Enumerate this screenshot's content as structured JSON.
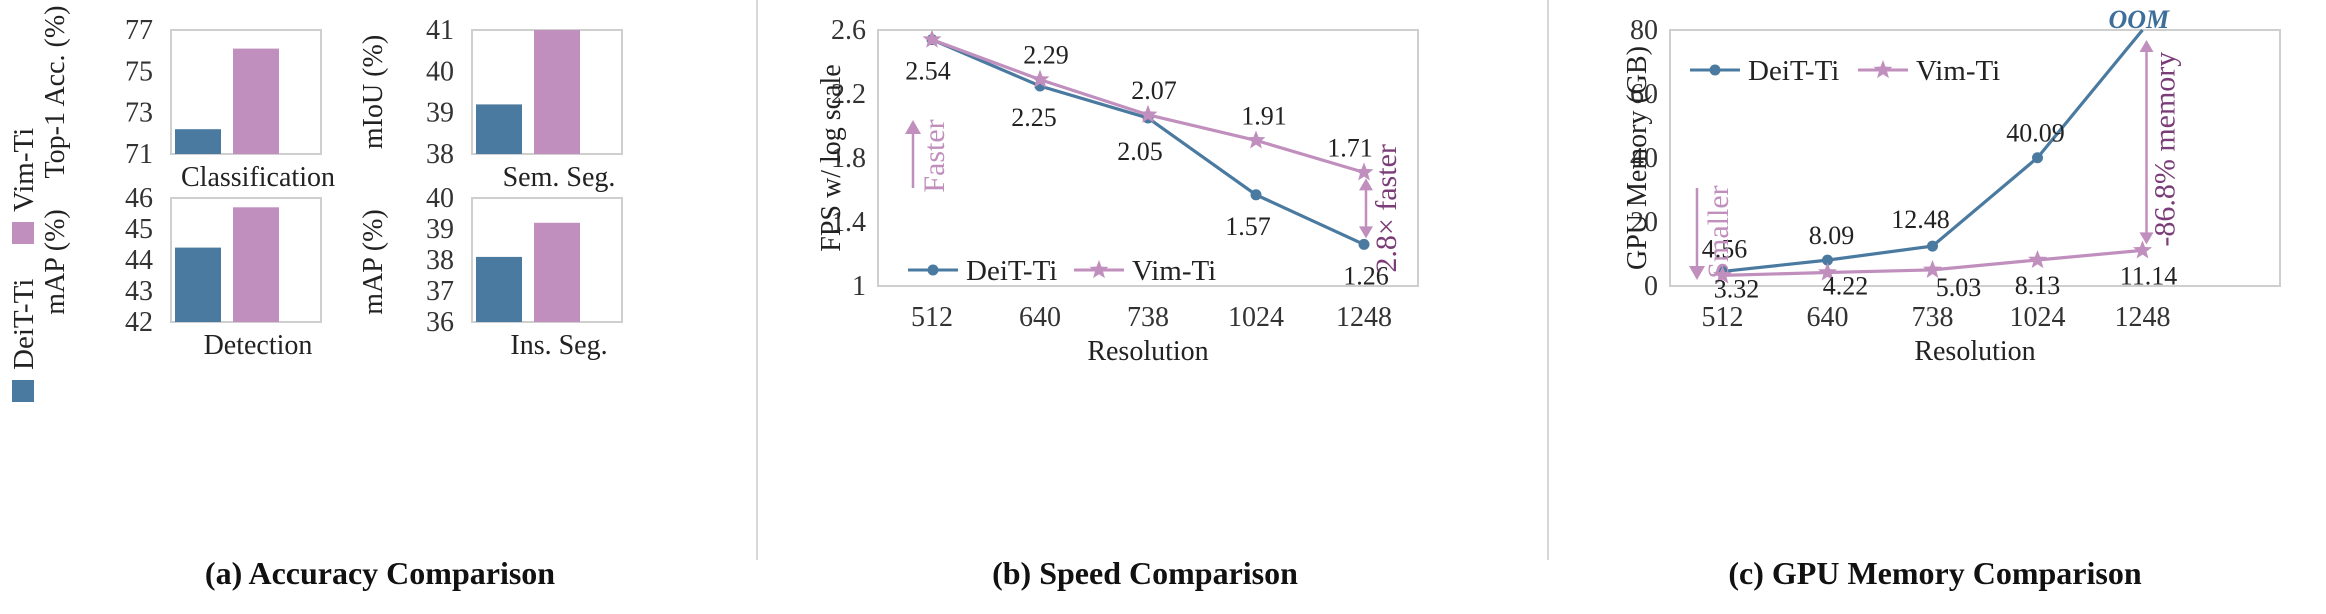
{
  "colors": {
    "deit": "#4a7aa0",
    "vim": "#c08fbd",
    "arrow_vim": "#c08fbd",
    "dark_text": "#7a3d78",
    "oom": "#3d6f9a"
  },
  "legend": {
    "deit": "DeiT-Ti",
    "vim": "Vim-Ti"
  },
  "captions": {
    "a": "(a) Accuracy Comparison",
    "b": "(b) Speed Comparison",
    "c": "(c) GPU Memory Comparison"
  },
  "chart_data": [
    {
      "id": "cls",
      "type": "bar",
      "categories": [
        "Classification"
      ],
      "series": [
        {
          "name": "DeiT-Ti",
          "values": [
            72.2
          ]
        },
        {
          "name": "Vim-Ti",
          "values": [
            76.1
          ]
        }
      ],
      "ylabel": "Top-1 Acc. (%)",
      "ylim": [
        71,
        77
      ],
      "ticks": [
        "71",
        "73",
        "75",
        "77"
      ]
    },
    {
      "id": "seg",
      "type": "bar",
      "categories": [
        "Sem. Seg."
      ],
      "series": [
        {
          "name": "DeiT-Ti",
          "values": [
            39.2
          ]
        },
        {
          "name": "Vim-Ti",
          "values": [
            41.0
          ]
        }
      ],
      "ylabel": "mIoU (%)",
      "ylim": [
        38,
        41
      ],
      "ticks": [
        "38",
        "39",
        "40",
        "41"
      ]
    },
    {
      "id": "det",
      "type": "bar",
      "categories": [
        "Detection"
      ],
      "series": [
        {
          "name": "DeiT-Ti",
          "values": [
            44.4
          ]
        },
        {
          "name": "Vim-Ti",
          "values": [
            45.7
          ]
        }
      ],
      "ylabel": "mAP (%)",
      "ylim": [
        42,
        46
      ],
      "ticks": [
        "42",
        "43",
        "44",
        "45",
        "46"
      ]
    },
    {
      "id": "ins",
      "type": "bar",
      "categories": [
        "Ins. Seg."
      ],
      "series": [
        {
          "name": "DeiT-Ti",
          "values": [
            38.1
          ]
        },
        {
          "name": "Vim-Ti",
          "values": [
            39.2
          ]
        }
      ],
      "ylabel": "mAP (%)",
      "ylim": [
        36,
        40
      ],
      "ticks": [
        "36",
        "37",
        "38",
        "39",
        "40"
      ]
    },
    {
      "id": "speed",
      "type": "line",
      "categories": [
        "512",
        "640",
        "738",
        "1024",
        "1248"
      ],
      "series": [
        {
          "name": "DeiT-Ti",
          "values": [
            2.54,
            2.25,
            2.05,
            1.57,
            1.26
          ]
        },
        {
          "name": "Vim-Ti",
          "values": [
            2.54,
            2.29,
            2.07,
            1.91,
            1.71
          ]
        }
      ],
      "labels_deit": [
        "2.54",
        "2.25",
        "2.05",
        "1.57",
        "1.26"
      ],
      "labels_vim": [
        "",
        "2.29",
        "2.07",
        "1.91",
        "1.71"
      ],
      "xlabel": "Resolution",
      "ylabel": "FPS w/ log scale",
      "ylim": [
        1,
        2.6
      ],
      "ticks": [
        "1",
        "1.4",
        "1.8",
        "2.2",
        "2.6"
      ],
      "annotations": {
        "faster": "Faster",
        "speedup": "2.8× faster"
      }
    },
    {
      "id": "memory",
      "type": "line",
      "categories": [
        "512",
        "640",
        "738",
        "1024",
        "1248"
      ],
      "series": [
        {
          "name": "DeiT-Ti",
          "values": [
            4.56,
            8.09,
            12.48,
            40.09,
            82
          ]
        },
        {
          "name": "Vim-Ti",
          "values": [
            3.32,
            4.22,
            5.03,
            8.13,
            11.14
          ]
        }
      ],
      "labels_deit": [
        "4.56",
        "8.09",
        "12.48",
        "40.09",
        ""
      ],
      "labels_vim": [
        "3.32",
        "4.22",
        "5.03",
        "8.13",
        "11.14"
      ],
      "xlabel": "Resolution",
      "ylabel": "GPU Memory (GB)",
      "ylim": [
        0,
        80
      ],
      "ticks": [
        "0",
        "20",
        "40",
        "60",
        "80"
      ],
      "annotations": {
        "oom": "OOM",
        "smaller": "Smaller",
        "saving": "-86.8% memory"
      }
    }
  ]
}
